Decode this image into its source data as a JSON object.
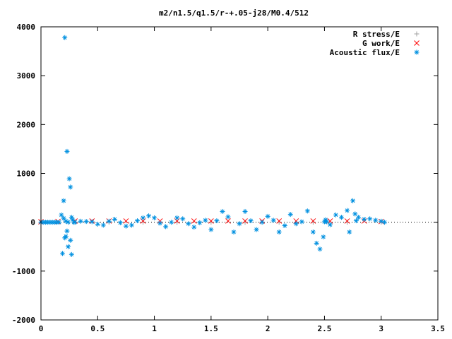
{
  "chart_data": {
    "type": "scatter",
    "title": "m2/n1.5/q1.5/r-+.05-j28/M0.4/512",
    "xlabel": "",
    "ylabel": "",
    "xlim": [
      0,
      3.5
    ],
    "ylim": [
      -2000,
      4000
    ],
    "grid": false,
    "legend_position": "top-right",
    "x_ticks": [
      0,
      0.5,
      1,
      1.5,
      2,
      2.5,
      3,
      3.5
    ],
    "x_tick_labels": [
      "0",
      "0.5",
      "1",
      "1.5",
      "2",
      "2.5",
      "3",
      "3.5"
    ],
    "y_ticks": [
      -2000,
      -1000,
      0,
      1000,
      2000,
      3000,
      4000
    ],
    "y_tick_labels": [
      "-2000",
      "-1000",
      "0",
      "1000",
      "2000",
      "3000",
      "4000"
    ],
    "series": [
      {
        "name": "R stress/E",
        "marker": "+",
        "color": "#a0a0a0",
        "x": [
          0.0,
          0.3,
          0.6,
          0.9,
          1.2,
          1.5,
          1.8,
          2.1,
          2.4,
          2.7,
          3.0
        ],
        "y": [
          0,
          0,
          0,
          0,
          0,
          0,
          0,
          0,
          0,
          0,
          0
        ]
      },
      {
        "name": "G work/E",
        "marker": "x",
        "color": "#ff0000",
        "x": [
          0.0,
          0.15,
          0.3,
          0.45,
          0.6,
          0.75,
          0.9,
          1.05,
          1.2,
          1.35,
          1.5,
          1.65,
          1.8,
          1.95,
          2.1,
          2.25,
          2.4,
          2.55,
          2.7,
          2.85,
          3.0
        ],
        "y": [
          10,
          15,
          25,
          25,
          25,
          25,
          25,
          25,
          25,
          25,
          25,
          25,
          25,
          25,
          25,
          25,
          25,
          25,
          25,
          25,
          15
        ]
      },
      {
        "name": "Acoustic flux/E",
        "marker": "*",
        "color": "#0090e0",
        "x": [
          0.0,
          0.02,
          0.04,
          0.06,
          0.08,
          0.1,
          0.12,
          0.14,
          0.16,
          0.18,
          0.19,
          0.2,
          0.2,
          0.21,
          0.21,
          0.22,
          0.22,
          0.23,
          0.23,
          0.24,
          0.24,
          0.25,
          0.26,
          0.26,
          0.27,
          0.27,
          0.28,
          0.29,
          0.3,
          0.35,
          0.4,
          0.45,
          0.5,
          0.55,
          0.6,
          0.65,
          0.7,
          0.75,
          0.8,
          0.85,
          0.9,
          0.95,
          1.0,
          1.05,
          1.1,
          1.15,
          1.2,
          1.25,
          1.3,
          1.35,
          1.4,
          1.45,
          1.5,
          1.55,
          1.6,
          1.65,
          1.7,
          1.75,
          1.8,
          1.85,
          1.9,
          1.95,
          2.0,
          2.05,
          2.1,
          2.15,
          2.2,
          2.25,
          2.3,
          2.35,
          2.4,
          2.43,
          2.46,
          2.49,
          2.5,
          2.51,
          2.52,
          2.55,
          2.6,
          2.65,
          2.7,
          2.72,
          2.75,
          2.77,
          2.78,
          2.8,
          2.85,
          2.9,
          2.95,
          3.0,
          3.03
        ],
        "y": [
          0,
          0,
          0,
          0,
          0,
          0,
          0,
          0,
          0,
          150,
          -640,
          80,
          440,
          -320,
          3780,
          20,
          -290,
          1450,
          -180,
          0,
          -500,
          890,
          720,
          -370,
          -660,
          100,
          50,
          0,
          0,
          20,
          15,
          10,
          -40,
          -60,
          20,
          60,
          -10,
          -80,
          -60,
          30,
          90,
          130,
          90,
          -20,
          -90,
          0,
          90,
          70,
          -30,
          -100,
          -10,
          40,
          -150,
          30,
          220,
          110,
          -200,
          -30,
          220,
          30,
          -150,
          0,
          120,
          40,
          -200,
          -70,
          160,
          -30,
          10,
          230,
          -200,
          -430,
          -550,
          -300,
          10,
          50,
          10,
          -50,
          150,
          100,
          240,
          -200,
          440,
          170,
          30,
          100,
          60,
          70,
          40,
          20,
          0
        ]
      }
    ]
  }
}
